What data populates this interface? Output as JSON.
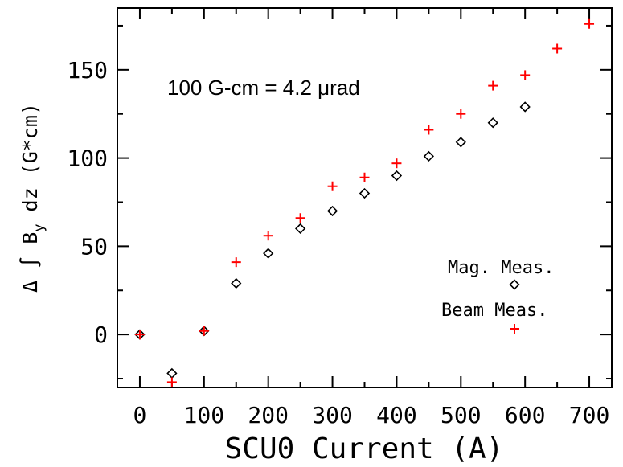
{
  "chart_data": {
    "type": "scatter",
    "title": "",
    "xlabel": "SCU0 Current (A)",
    "ylabel": "Δ ∫ B_y dz (G*cm)",
    "xlim": [
      -35,
      735
    ],
    "ylim": [
      -30,
      185
    ],
    "x_ticks": [
      "0",
      "100",
      "200",
      "300",
      "400",
      "500",
      "600",
      "700"
    ],
    "y_ticks": [
      "0",
      "50",
      "100",
      "150"
    ],
    "annotation": "100 G-cm = 4.2 μrad",
    "legend_placement": "lower-right",
    "grid": false,
    "series": [
      {
        "name": "Mag. Meas.",
        "marker": "diamond",
        "color": "#000000",
        "x": [
          0,
          50,
          100,
          150,
          200,
          250,
          300,
          350,
          400,
          450,
          500,
          550,
          600
        ],
        "y": [
          0,
          -22,
          2,
          29,
          46,
          60,
          70,
          80,
          90,
          101,
          109,
          120,
          129
        ]
      },
      {
        "name": "Beam Meas.",
        "marker": "plus",
        "color": "#ff0000",
        "x": [
          0,
          50,
          100,
          150,
          200,
          250,
          300,
          350,
          400,
          450,
          500,
          550,
          600,
          650,
          700
        ],
        "y": [
          0,
          -27,
          2,
          41,
          56,
          66,
          84,
          89,
          97,
          116,
          125,
          141,
          147,
          162,
          176
        ]
      }
    ]
  }
}
